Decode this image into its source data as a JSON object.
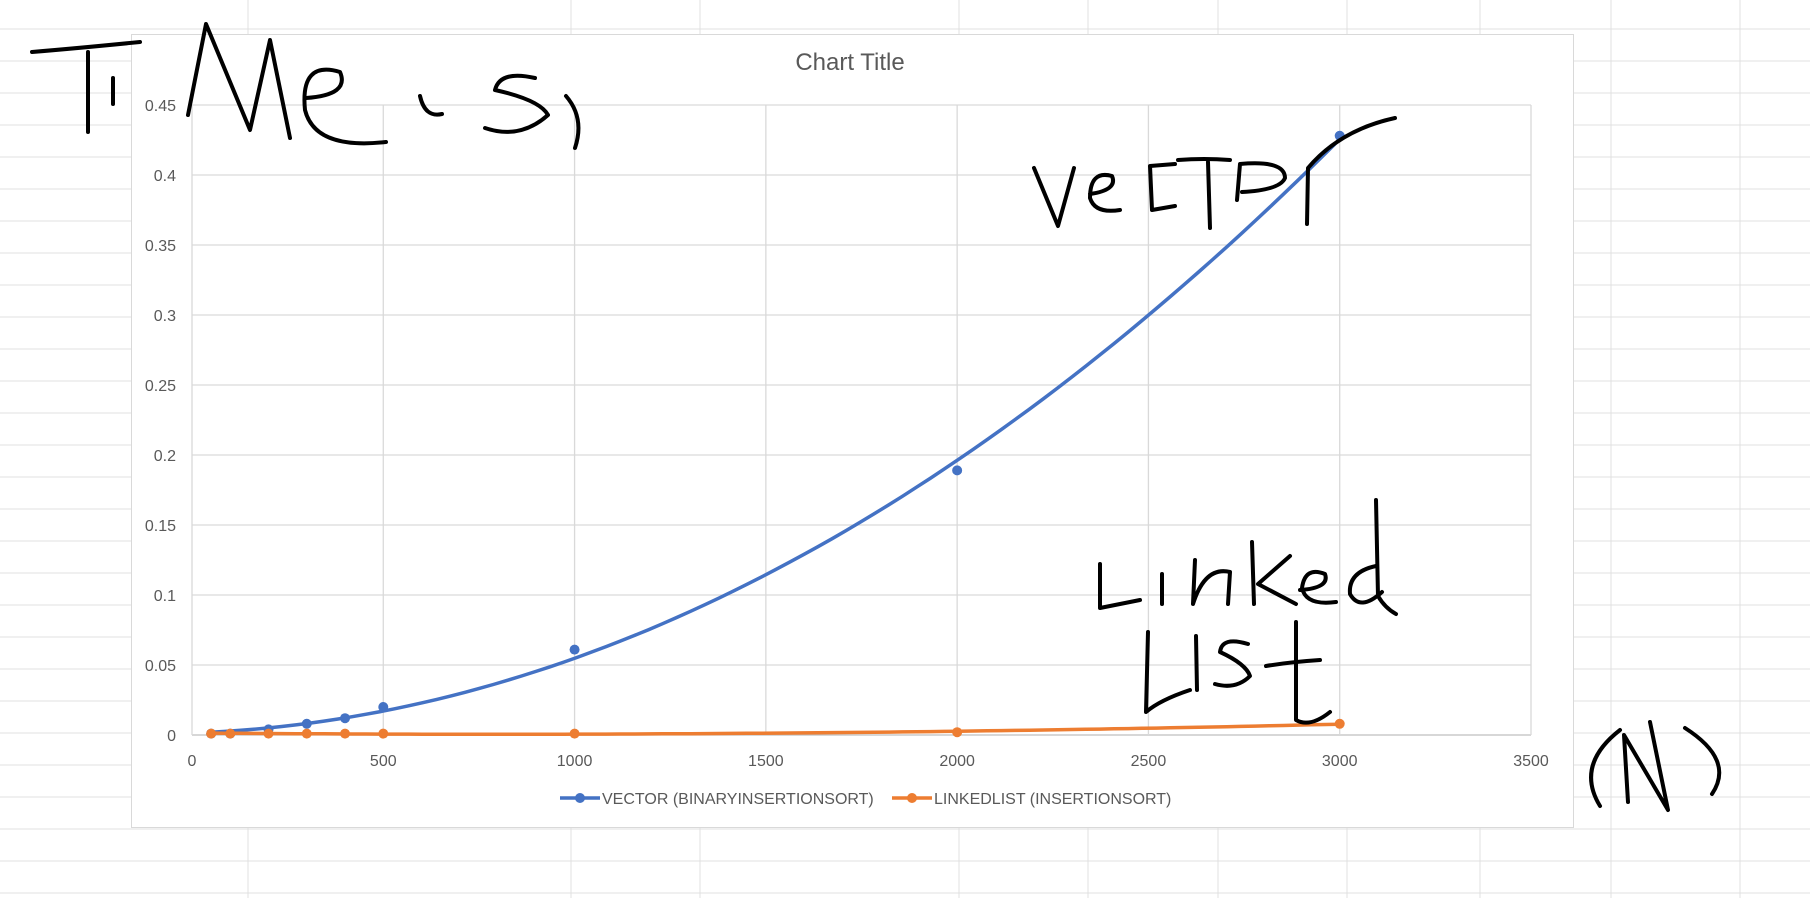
{
  "chart_data": {
    "type": "scatter",
    "title": "Chart Title",
    "xlabel": "",
    "ylabel": "",
    "xlim": [
      0,
      3500
    ],
    "ylim": [
      0,
      0.45
    ],
    "x_ticks": [
      0,
      500,
      1000,
      1500,
      2000,
      2500,
      3000,
      3500
    ],
    "y_ticks": [
      0,
      0.05,
      0.1,
      0.15,
      0.2,
      0.25,
      0.3,
      0.35,
      0.4,
      0.45
    ],
    "grid": true,
    "legend": "bottom",
    "trendline": "polynomial",
    "series": [
      {
        "name": "VECTOR (BINARYINSERTIONSORT)",
        "color": "#4472c4",
        "x": [
          50,
          100,
          200,
          300,
          400,
          500,
          1000,
          2000,
          3000
        ],
        "y": [
          0.001,
          0.001,
          0.004,
          0.008,
          0.012,
          0.02,
          0.061,
          0.189,
          0.428
        ]
      },
      {
        "name": "LINKEDLIST (INSERTIONSORT)",
        "color": "#ed7d31",
        "x": [
          50,
          100,
          200,
          300,
          400,
          500,
          1000,
          2000,
          3000
        ],
        "y": [
          0.001,
          0.001,
          0.001,
          0.001,
          0.001,
          0.001,
          0.001,
          0.002,
          0.008
        ]
      }
    ]
  },
  "annotations": [
    {
      "text": "Time (s)"
    },
    {
      "text": "vector"
    },
    {
      "text": "Linked List"
    },
    {
      "text": "(N)"
    }
  ]
}
